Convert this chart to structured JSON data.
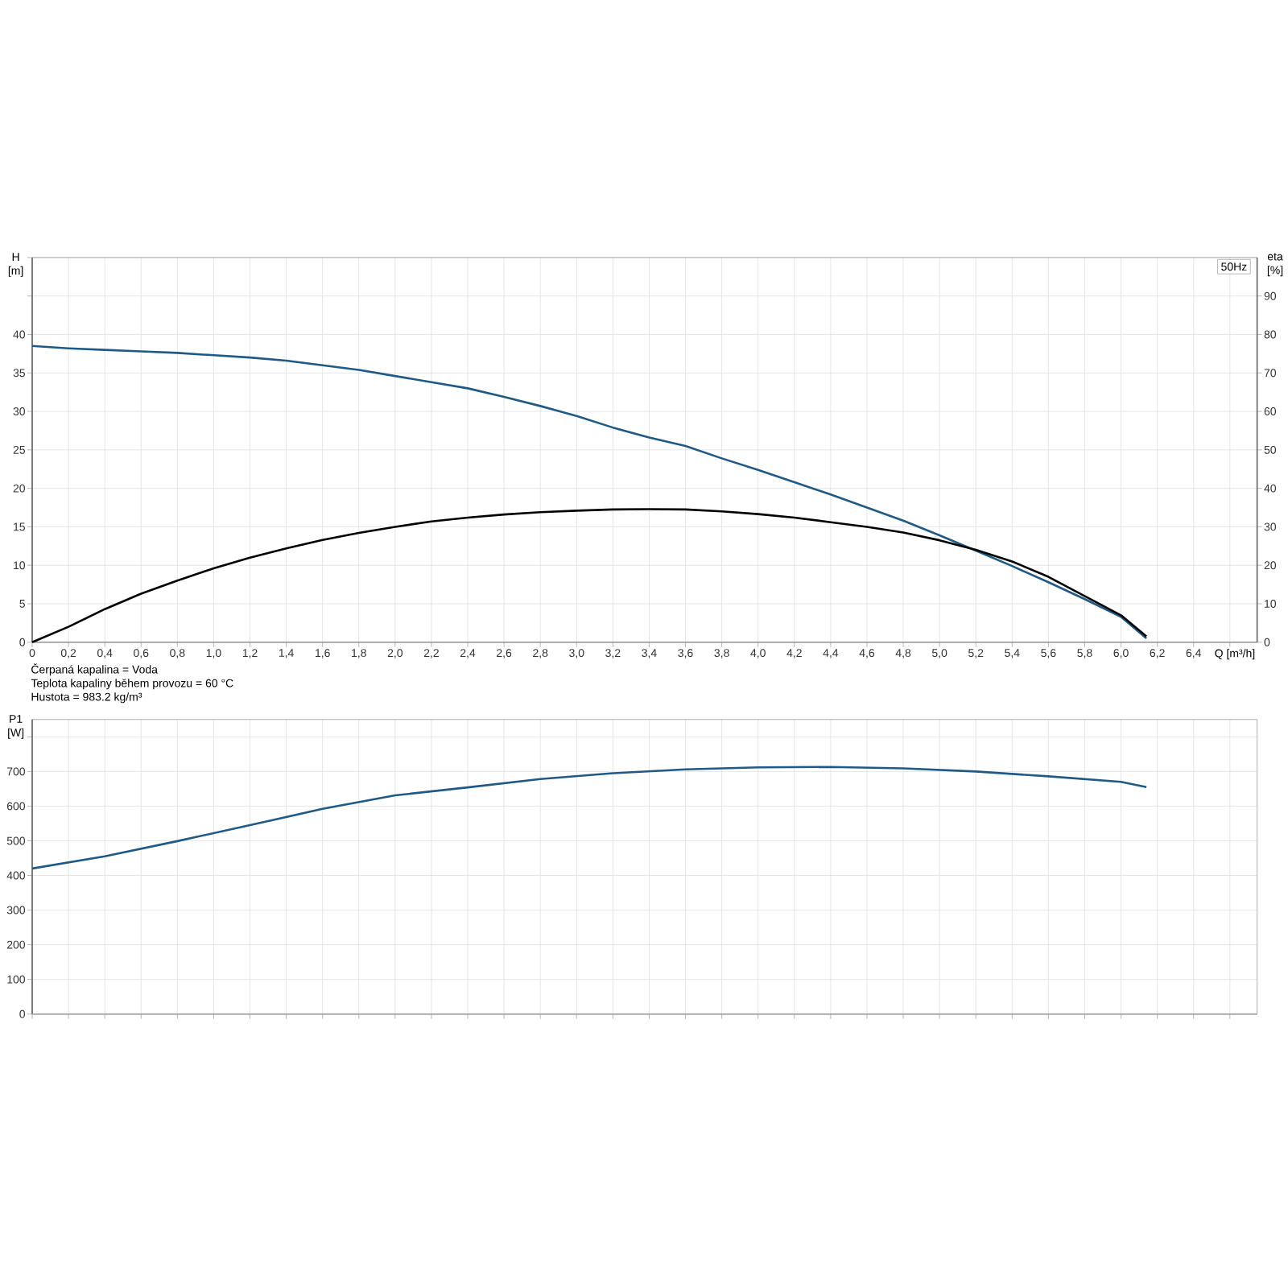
{
  "chart_data": [
    {
      "type": "line",
      "subtitle": "50Hz",
      "ylabel": "H [m]",
      "y2label": "eta [%]",
      "xlabel": "Q [m³/h]",
      "annotations": [
        "Čerpaná kapalina = Voda",
        "Teplota kapaliny během provozu = 60 °C",
        "Hustota = 983.2 kg/m³"
      ],
      "x": [
        0,
        0.2,
        0.4,
        0.6,
        0.8,
        1.0,
        1.2,
        1.4,
        1.6,
        1.8,
        2.0,
        2.2,
        2.4,
        2.6,
        2.8,
        3.0,
        3.2,
        3.4,
        3.6,
        3.8,
        4.0,
        4.2,
        4.4,
        4.6,
        4.8,
        5.0,
        5.2,
        5.4,
        5.6,
        5.8,
        6.0,
        6.14
      ],
      "series": [
        {
          "color": "#1f5a87",
          "values": [
            38.5,
            38.2,
            38.0,
            37.8,
            37.6,
            37.3,
            37.0,
            36.6,
            36.0,
            35.4,
            34.6,
            33.8,
            33.0,
            31.9,
            30.7,
            29.4,
            27.9,
            26.6,
            25.5,
            23.9,
            22.4,
            20.8,
            19.2,
            17.5,
            15.8,
            13.9,
            11.9,
            9.9,
            7.8,
            5.6,
            3.3,
            0.5
          ]
        },
        {
          "color": "#000000",
          "axis": "y2",
          "values": [
            0,
            4.0,
            8.6,
            12.6,
            16.0,
            19.2,
            22.0,
            24.4,
            26.6,
            28.4,
            30.0,
            31.4,
            32.4,
            33.2,
            33.8,
            34.2,
            34.5,
            34.6,
            34.5,
            34.0,
            33.3,
            32.4,
            31.2,
            30.0,
            28.5,
            26.5,
            24.0,
            21.0,
            17.0,
            12.0,
            7.0,
            1.5
          ]
        }
      ],
      "xlim": [
        0,
        6.75
      ],
      "ylim": [
        0,
        50
      ],
      "y2lim": [
        0,
        100
      ],
      "xticks": [
        0,
        {
          "value": 0.2,
          "label": "0,2"
        },
        {
          "value": 0.4,
          "label": "0,4"
        },
        {
          "value": 0.6,
          "label": "0,6"
        },
        {
          "value": 0.8,
          "label": "0,8"
        },
        {
          "value": 1.0,
          "label": "1,0"
        },
        {
          "value": 1.2,
          "label": "1,2"
        },
        {
          "value": 1.4,
          "label": "1,4"
        },
        {
          "value": 1.6,
          "label": "1,6"
        },
        {
          "value": 1.8,
          "label": "1,8"
        },
        {
          "value": 2.0,
          "label": "2,0"
        },
        {
          "value": 2.2,
          "label": "2,2"
        },
        {
          "value": 2.4,
          "label": "2,4"
        },
        {
          "value": 2.6,
          "label": "2,6"
        },
        {
          "value": 2.8,
          "label": "2,8"
        },
        {
          "value": 3.0,
          "label": "3,0"
        },
        {
          "value": 3.2,
          "label": "3,2"
        },
        {
          "value": 3.4,
          "label": "3,4"
        },
        {
          "value": 3.6,
          "label": "3,6"
        },
        {
          "value": 3.8,
          "label": "3,8"
        },
        {
          "value": 4.0,
          "label": "4,0"
        },
        {
          "value": 4.2,
          "label": "4,2"
        },
        {
          "value": 4.4,
          "label": "4,4"
        },
        {
          "value": 4.6,
          "label": "4,6"
        },
        {
          "value": 4.8,
          "label": "4,8"
        },
        {
          "value": 5.0,
          "label": "5,0"
        },
        {
          "value": 5.2,
          "label": "5,2"
        },
        {
          "value": 5.4,
          "label": "5,4"
        },
        {
          "value": 5.6,
          "label": "5,6"
        },
        {
          "value": 5.8,
          "label": "5,8"
        },
        {
          "value": 6.0,
          "label": "6,0"
        },
        {
          "value": 6.2,
          "label": "6,2"
        },
        {
          "value": 6.4,
          "label": "6,4"
        },
        {
          "value": 6.6,
          "label": null
        }
      ],
      "yticks": [
        0,
        5,
        10,
        15,
        20,
        25,
        30,
        35,
        40,
        {
          "value": 45,
          "label": null
        },
        {
          "value": 50,
          "label": null
        }
      ],
      "y2ticks": [
        0,
        10,
        20,
        30,
        40,
        50,
        60,
        70,
        80,
        90
      ],
      "grid": true
    },
    {
      "type": "line",
      "ylabel": "P1 [W]",
      "x": [
        0,
        0.4,
        0.8,
        1.2,
        1.6,
        2.0,
        2.4,
        2.8,
        3.2,
        3.6,
        4.0,
        4.4,
        4.8,
        5.2,
        5.6,
        6.0,
        6.14
      ],
      "series": [
        {
          "color": "#1f5a87",
          "values": [
            420,
            455,
            499,
            545,
            592,
            631,
            654,
            678,
            695,
            706,
            712,
            713,
            709,
            700,
            686,
            670,
            655
          ]
        }
      ],
      "xlim": [
        0,
        6.75
      ],
      "ylim": [
        0,
        850
      ],
      "xticks": [
        0,
        0.2,
        0.4,
        0.6,
        0.8,
        1.0,
        1.2,
        1.4,
        1.6,
        1.8,
        2.0,
        2.2,
        2.4,
        2.6,
        2.8,
        3.0,
        3.2,
        3.4,
        3.6,
        3.8,
        4.0,
        4.2,
        4.4,
        4.6,
        4.8,
        5.0,
        5.2,
        5.4,
        5.6,
        5.8,
        6.0,
        6.2,
        6.4,
        6.6
      ],
      "yticks": [
        0,
        100,
        200,
        300,
        400,
        500,
        600,
        700,
        {
          "value": 800,
          "label": null
        }
      ],
      "tick_labels": "y",
      "grid": true
    }
  ]
}
